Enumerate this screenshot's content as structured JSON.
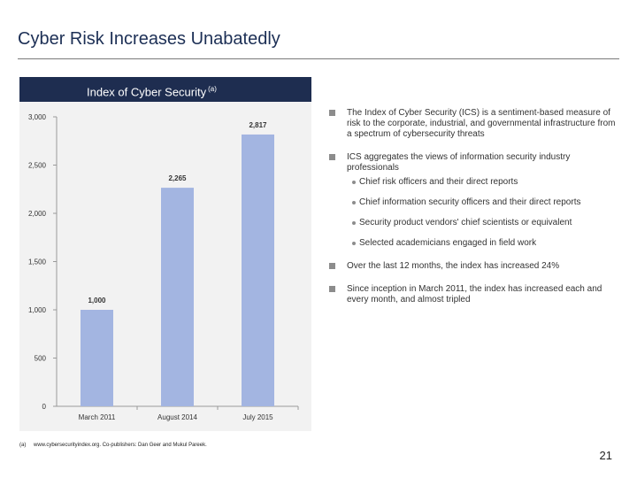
{
  "slide": {
    "title": "Cyber Risk Increases Unabatedly",
    "chart_header": "Index of Cyber Security",
    "chart_header_note": "(a)",
    "page_number": "21"
  },
  "bullets": [
    {
      "text": "The Index of Cyber Security (ICS) is a sentiment-based measure of risk to the corporate, industrial, and governmental infrastructure from a spectrum of cybersecurity threats"
    },
    {
      "text": "ICS aggregates the views of information security industry professionals",
      "sub": [
        "Chief risk officers and their direct reports",
        "Chief information security officers and their direct reports",
        "Security product vendors' chief scientists or equivalent",
        "Selected academicians engaged in field work"
      ]
    },
    {
      "text": "Over the last 12 months, the index has increased 24%"
    },
    {
      "text": "Since inception in March 2011, the index has increased each and every month, and almost tripled"
    }
  ],
  "footnote": {
    "marker": "(a)",
    "text": "www.cybersecurityindex.org. Co-publishers: Dan Geer and Mukul Pareek."
  },
  "colors": {
    "bar": "#a3b5e1",
    "header_bg": "#1e2d50",
    "panel_bg": "#f2f2f2"
  },
  "chart_data": {
    "type": "bar",
    "title": "Index of Cyber Security",
    "categories": [
      "March 2011",
      "August 2014",
      "July 2015"
    ],
    "values": [
      1000,
      2265,
      2817
    ],
    "value_labels": [
      "1,000",
      "2,265",
      "2,817"
    ],
    "ylim": [
      0,
      3000
    ],
    "yticks": [
      0,
      500,
      1000,
      1500,
      2000,
      2500,
      3000
    ],
    "ytick_labels": [
      "0",
      "500",
      "1,000",
      "1,500",
      "2,000",
      "2,500",
      "3,000"
    ],
    "xlabel": "",
    "ylabel": "",
    "grid": false
  }
}
